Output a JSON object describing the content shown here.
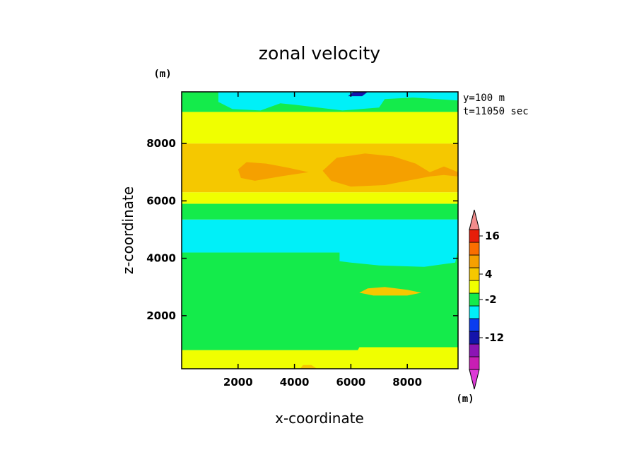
{
  "chart_data": {
    "type": "heatmap",
    "title": "zonal velocity",
    "xlabel": "x-coordinate",
    "ylabel": "z-coordinate",
    "y_unit": "(m)",
    "colorbar_unit": "(m)",
    "info_lines": [
      "y=100 m",
      "t=11050 sec"
    ],
    "xlim": [
      0,
      9800
    ],
    "ylim": [
      150,
      9800
    ],
    "xticks": [
      2000,
      4000,
      6000,
      8000
    ],
    "yticks": [
      2000,
      4000,
      6000,
      8000
    ],
    "xtick_labels": [
      "2000",
      "4000",
      "6000",
      "8000"
    ],
    "ytick_labels": [
      "2000",
      "4000",
      "6000",
      "8000"
    ],
    "colorbar": {
      "colors": [
        "#dd3ad7",
        "#c81eb4",
        "#8c14b4",
        "#1414aa",
        "#0a3cf0",
        "#00f0f8",
        "#14eb4b",
        "#f0ff00",
        "#f5c800",
        "#f5a000",
        "#fa6e00",
        "#e61e0a",
        "#f28c8c"
      ],
      "labels": [
        {
          "text": "16",
          "index": 11.5
        },
        {
          "text": "4",
          "index": 8.5
        },
        {
          "text": "-2",
          "index": 6.5
        },
        {
          "text": "-12",
          "index": 3.5
        }
      ]
    },
    "field_bands": [
      {
        "z": [
          150,
          800
        ],
        "color": "#f0ff00"
      },
      {
        "z": [
          800,
          4200
        ],
        "color": "#14eb4b"
      },
      {
        "z": [
          4200,
          5350
        ],
        "color": "#00f0f8"
      },
      {
        "z": [
          5350,
          5900
        ],
        "color": "#14eb4b"
      },
      {
        "z": [
          5900,
          6300
        ],
        "color": "#f0ff00"
      },
      {
        "z": [
          6300,
          8000
        ],
        "color": "#f5c800"
      },
      {
        "z": [
          8000,
          9100
        ],
        "color": "#f0ff00"
      },
      {
        "z": [
          9100,
          9800
        ],
        "color": "#14eb4b"
      }
    ],
    "field_patches": [
      {
        "color": "#f0ff00",
        "points": [
          [
            5900,
            150
          ],
          [
            6300,
            900
          ],
          [
            9800,
            900
          ],
          [
            9800,
            150
          ]
        ]
      },
      {
        "color": "#f5c800",
        "points": [
          [
            4200,
            150
          ],
          [
            4800,
            150
          ],
          [
            4600,
            280
          ],
          [
            4300,
            280
          ]
        ]
      },
      {
        "color": "#00f0f8",
        "points": [
          [
            5600,
            3900
          ],
          [
            6000,
            3850
          ],
          [
            7000,
            3750
          ],
          [
            8600,
            3700
          ],
          [
            9700,
            3850
          ],
          [
            9800,
            4300
          ],
          [
            5600,
            4300
          ]
        ]
      },
      {
        "color": "#00f0f8",
        "points": [
          [
            0,
            5050
          ],
          [
            1500,
            4950
          ],
          [
            3500,
            5200
          ],
          [
            5000,
            5250
          ],
          [
            6000,
            5350
          ],
          [
            9800,
            5350
          ],
          [
            9800,
            5300
          ],
          [
            0,
            5300
          ]
        ]
      },
      {
        "color": "#f5c800",
        "points": [
          [
            6300,
            2800
          ],
          [
            6600,
            2950
          ],
          [
            7200,
            3000
          ],
          [
            8000,
            2900
          ],
          [
            8500,
            2800
          ],
          [
            8000,
            2700
          ],
          [
            6800,
            2700
          ]
        ]
      },
      {
        "color": "#f5a000",
        "points": [
          [
            2000,
            7100
          ],
          [
            2300,
            7350
          ],
          [
            3000,
            7300
          ],
          [
            3800,
            7150
          ],
          [
            4500,
            7000
          ],
          [
            3500,
            6850
          ],
          [
            2600,
            6700
          ],
          [
            2100,
            6800
          ]
        ]
      },
      {
        "color": "#f5a000",
        "points": [
          [
            5000,
            7050
          ],
          [
            5500,
            7500
          ],
          [
            6500,
            7650
          ],
          [
            7500,
            7550
          ],
          [
            8300,
            7300
          ],
          [
            8800,
            7000
          ],
          [
            9300,
            7200
          ],
          [
            9800,
            7000
          ],
          [
            9800,
            6850
          ],
          [
            9300,
            6900
          ],
          [
            8800,
            6850
          ],
          [
            8000,
            6700
          ],
          [
            7200,
            6550
          ],
          [
            6000,
            6500
          ],
          [
            5300,
            6700
          ]
        ]
      },
      {
        "color": "#f0ff00",
        "points": [
          [
            1500,
            8000
          ],
          [
            1600,
            8600
          ],
          [
            2800,
            8700
          ],
          [
            4500,
            8600
          ],
          [
            6000,
            8650
          ],
          [
            7500,
            8700
          ],
          [
            9800,
            8600
          ],
          [
            9800,
            8000
          ]
        ]
      },
      {
        "color": "#00f0f8",
        "points": [
          [
            1300,
            9450
          ],
          [
            1800,
            9200
          ],
          [
            2800,
            9150
          ],
          [
            3500,
            9400
          ],
          [
            4000,
            9350
          ],
          [
            5700,
            9150
          ],
          [
            7000,
            9250
          ],
          [
            7200,
            9550
          ],
          [
            8200,
            9600
          ],
          [
            9800,
            9500
          ],
          [
            9800,
            9800
          ],
          [
            1300,
            9800
          ]
        ]
      },
      {
        "color": "#1414aa",
        "points": [
          [
            5900,
            9650
          ],
          [
            6100,
            9800
          ],
          [
            6600,
            9800
          ],
          [
            6400,
            9650
          ]
        ]
      }
    ]
  }
}
